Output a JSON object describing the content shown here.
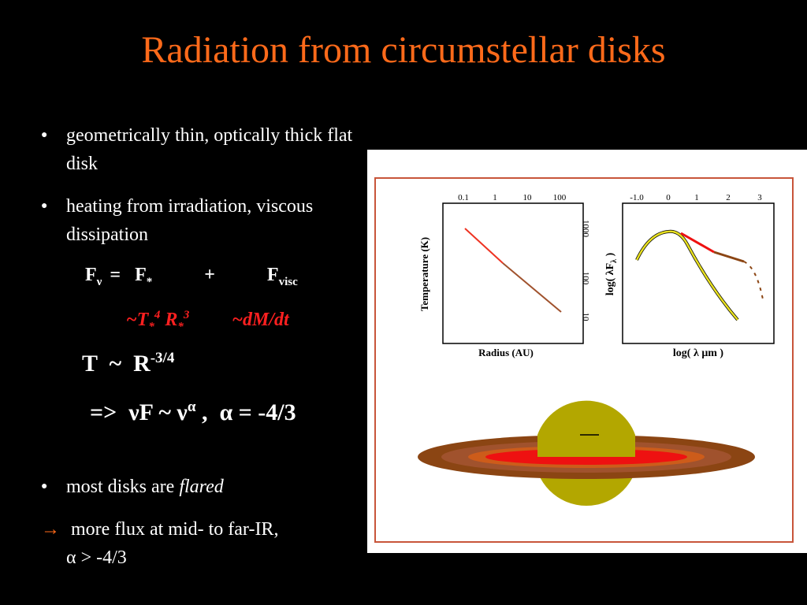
{
  "title": "Radiation from circumstellar disks",
  "bullets": [
    {
      "marker": "●",
      "text": "geometrically thin, optically thick flat disk"
    },
    {
      "marker": "●",
      "text": "heating from irradiation, viscous dissipation"
    }
  ],
  "equations": {
    "fnu": {
      "F": "F",
      "nu": "ν",
      "eq": "=",
      "fstar": "F",
      "star": "*",
      "plus": "+",
      "fvisc": "F",
      "visc": "visc"
    },
    "terms": {
      "left_tilde": "~T",
      "star1": "*",
      "p4": "4",
      "R": " R",
      "star2": "*",
      "p3": "3",
      "right": "~dM/dt"
    },
    "tr": {
      "text": "T  ~  R",
      "exp": "-3/4"
    },
    "alpha": {
      "arrow": "=>  ",
      "nuF": "νF ~ ν",
      "exp": "α",
      "rest": " ,  α = -4/3"
    }
  },
  "bullet_flared": {
    "marker": "●",
    "prefix": "most disks are ",
    "emph": "flared"
  },
  "conclusion": {
    "arrow": "→",
    "text": " more flux at mid- to far-IR,",
    "line2": "α > -4/3"
  },
  "figure": {
    "left_plot": {
      "top_ticks": [
        "0.1",
        "1",
        "10",
        "100"
      ],
      "right_ticks": [
        "1000",
        "100",
        "10"
      ],
      "ylabel": "Temperature (K)",
      "xlabel": "Radius (AU)"
    },
    "right_plot": {
      "top_ticks": [
        "-1.0",
        "0",
        "1",
        "2",
        "3"
      ],
      "ylabel_main": "log( λF",
      "ylabel_sub": "λ",
      "ylabel_end": " )",
      "xlabel": "log( λ μm )"
    }
  },
  "colors": {
    "title": "#ff6a1a",
    "highlight": "#ff2020",
    "panel_border": "#c8553a",
    "star": "#b3a700",
    "disk_red": "#ee1111",
    "disk_brown": "#8b4513"
  }
}
